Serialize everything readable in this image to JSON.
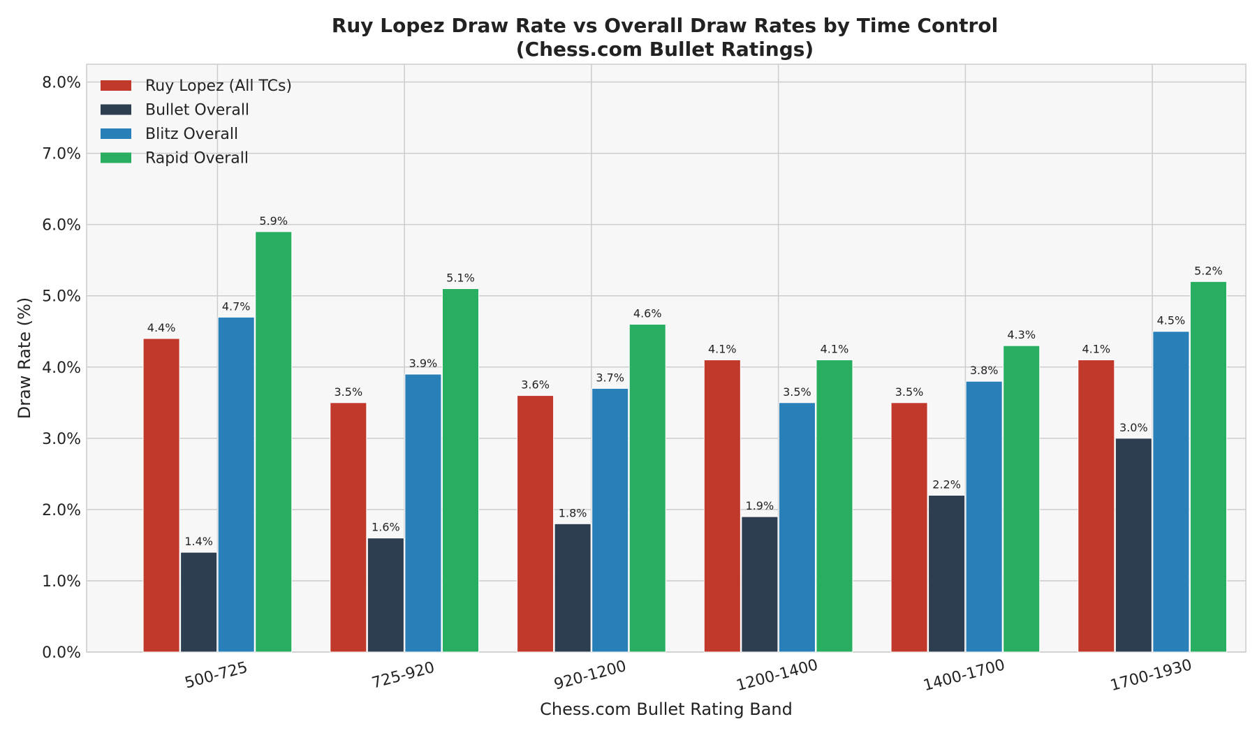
{
  "chart_data": {
    "type": "bar",
    "title": "Ruy Lopez Draw Rate vs Overall Draw Rates by Time Control",
    "subtitle": "(Chess.com Bullet Ratings)",
    "xlabel": "Chess.com Bullet Rating Band",
    "ylabel": "Draw Rate (%)",
    "categories": [
      "500-725",
      "725-920",
      "920-1200",
      "1200-1400",
      "1400-1700",
      "1700-1930"
    ],
    "series": [
      {
        "name": "Ruy Lopez (All TCs)",
        "color": "#c0392b",
        "values": [
          4.4,
          3.5,
          3.6,
          4.1,
          3.5,
          4.1
        ]
      },
      {
        "name": "Bullet Overall",
        "color": "#2c3e50",
        "values": [
          1.4,
          1.6,
          1.8,
          1.9,
          2.2,
          3.0
        ]
      },
      {
        "name": "Blitz Overall",
        "color": "#2980b9",
        "values": [
          4.7,
          3.9,
          3.7,
          3.5,
          3.8,
          4.5
        ]
      },
      {
        "name": "Rapid Overall",
        "color": "#27ae60",
        "values": [
          5.9,
          5.1,
          4.6,
          4.1,
          4.3,
          5.2
        ]
      }
    ],
    "yticks": [
      "0.0%",
      "1.0%",
      "2.0%",
      "3.0%",
      "4.0%",
      "5.0%",
      "6.0%",
      "7.0%",
      "8.0%"
    ],
    "ylim": [
      0,
      8.25
    ],
    "grid": true,
    "legend_position": "top-left",
    "x_tick_rotation": "15 degrees",
    "plot_background": "#f7f7f7",
    "grid_color": "#cccccc"
  }
}
